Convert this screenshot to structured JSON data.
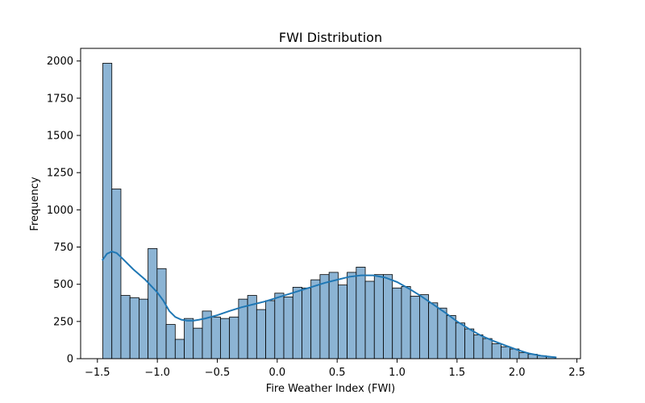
{
  "chart_data": {
    "type": "bar",
    "title": "FWI Distribution",
    "xlabel": "Fire Weather Index (FWI)",
    "ylabel": "Frequency",
    "xlim": [
      -1.64,
      2.53
    ],
    "ylim": [
      0,
      2085
    ],
    "xticks": [
      -1.5,
      -1.0,
      -0.5,
      0.0,
      0.5,
      1.0,
      1.5,
      2.0,
      2.5
    ],
    "xtick_labels": [
      "−1.5",
      "−1.0",
      "−0.5",
      "0.0",
      "0.5",
      "1.0",
      "1.5",
      "2.0",
      "2.5"
    ],
    "yticks": [
      0,
      250,
      500,
      750,
      1000,
      1250,
      1500,
      1750,
      2000
    ],
    "ytick_labels": [
      "0",
      "250",
      "500",
      "750",
      "1000",
      "1250",
      "1500",
      "1750",
      "2000"
    ],
    "grid": false,
    "bin_start": -1.455,
    "bin_width": 0.0755,
    "values": [
      1985,
      1140,
      425,
      410,
      400,
      740,
      605,
      230,
      130,
      270,
      205,
      320,
      280,
      270,
      280,
      400,
      425,
      330,
      390,
      440,
      415,
      480,
      475,
      530,
      565,
      580,
      495,
      580,
      615,
      520,
      565,
      565,
      475,
      485,
      420,
      430,
      375,
      340,
      290,
      240,
      200,
      160,
      135,
      100,
      80,
      65,
      40,
      30,
      20,
      12
    ],
    "kde": {
      "x": [
        -1.46,
        -1.42,
        -1.38,
        -1.34,
        -1.3,
        -1.2,
        -1.1,
        -1.0,
        -0.95,
        -0.9,
        -0.85,
        -0.8,
        -0.75,
        -0.7,
        -0.65,
        -0.6,
        -0.5,
        -0.4,
        -0.3,
        -0.2,
        -0.1,
        0.0,
        0.1,
        0.2,
        0.3,
        0.4,
        0.5,
        0.6,
        0.7,
        0.8,
        0.9,
        1.0,
        1.1,
        1.2,
        1.3,
        1.4,
        1.5,
        1.6,
        1.7,
        1.8,
        1.9,
        2.0,
        2.1,
        2.2,
        2.33
      ],
      "y": [
        660,
        705,
        720,
        710,
        680,
        600,
        530,
        445,
        390,
        320,
        280,
        262,
        255,
        255,
        262,
        270,
        292,
        320,
        345,
        365,
        385,
        410,
        435,
        460,
        485,
        510,
        530,
        550,
        560,
        560,
        545,
        515,
        470,
        420,
        365,
        310,
        250,
        200,
        155,
        120,
        90,
        60,
        35,
        20,
        8
      ]
    },
    "bar_color": "#8cb4d4",
    "bar_edge": "#000000",
    "line_color": "#1f77b4"
  }
}
